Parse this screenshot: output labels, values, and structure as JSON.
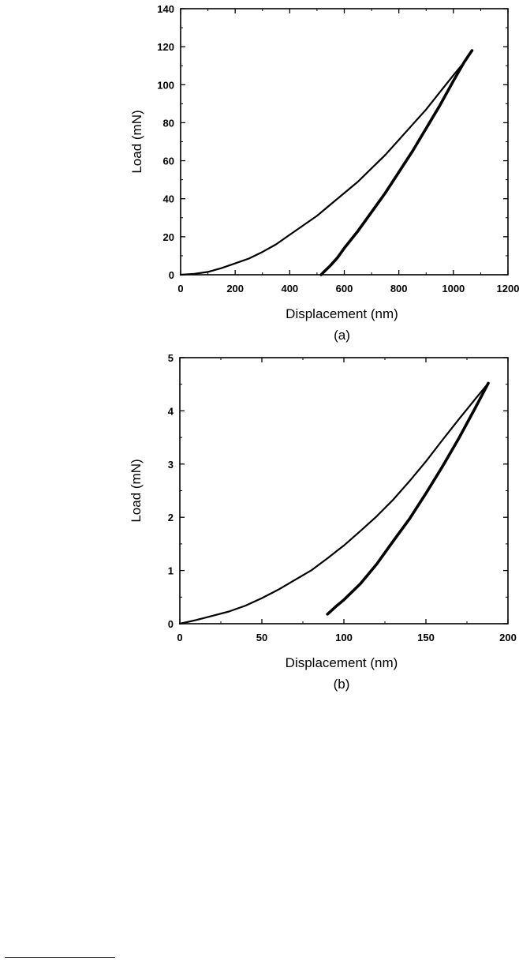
{
  "chart_data": [
    {
      "type": "line",
      "panel_label": "(a)",
      "xlabel": "Displacement (nm)",
      "ylabel": "Load (mN)",
      "xlim": [
        0,
        1200
      ],
      "ylim": [
        0,
        140
      ],
      "xticks": [
        0,
        200,
        400,
        600,
        800,
        1000,
        1200
      ],
      "yticks": [
        0,
        20,
        40,
        60,
        80,
        100,
        120,
        140
      ],
      "grid": false,
      "series": [
        {
          "segment": "loading",
          "x": [
            0,
            50,
            100,
            150,
            200,
            250,
            300,
            350,
            400,
            450,
            500,
            550,
            600,
            650,
            700,
            750,
            800,
            850,
            900,
            950,
            1000,
            1040,
            1068
          ],
          "y": [
            0,
            0.5,
            1.5,
            3.5,
            6,
            8.5,
            12,
            16,
            21,
            26,
            31,
            37,
            43,
            49,
            56,
            63,
            71,
            79,
            87,
            96,
            105,
            112,
            118
          ]
        },
        {
          "segment": "unloading",
          "x": [
            1068,
            1040,
            1000,
            950,
            900,
            850,
            800,
            750,
            700,
            650,
            600,
            575,
            550,
            525,
            515
          ],
          "y": [
            118,
            112,
            102,
            89,
            77,
            65,
            54,
            43,
            33,
            23,
            14,
            9,
            5,
            1.5,
            0
          ]
        }
      ]
    },
    {
      "type": "line",
      "panel_label": "(b)",
      "xlabel": "Displacement (nm)",
      "ylabel": "Load (mN)",
      "xlim": [
        0,
        200
      ],
      "ylim": [
        0,
        5
      ],
      "xticks": [
        0,
        50,
        100,
        150,
        200
      ],
      "yticks": [
        0,
        1,
        2,
        3,
        4,
        5
      ],
      "grid": false,
      "series": [
        {
          "segment": "loading",
          "x": [
            0,
            10,
            20,
            30,
            40,
            50,
            60,
            70,
            80,
            90,
            100,
            110,
            120,
            130,
            140,
            150,
            160,
            170,
            180,
            188
          ],
          "y": [
            0,
            0.07,
            0.15,
            0.23,
            0.34,
            0.48,
            0.64,
            0.82,
            1.0,
            1.23,
            1.47,
            1.74,
            2.02,
            2.33,
            2.68,
            3.05,
            3.45,
            3.84,
            4.22,
            4.52
          ]
        },
        {
          "segment": "unloading",
          "x": [
            188,
            180,
            170,
            160,
            150,
            140,
            130,
            120,
            110,
            100,
            95,
            90
          ],
          "y": [
            4.52,
            4.05,
            3.48,
            2.95,
            2.45,
            1.97,
            1.55,
            1.12,
            0.75,
            0.45,
            0.32,
            0.18
          ]
        }
      ]
    }
  ]
}
